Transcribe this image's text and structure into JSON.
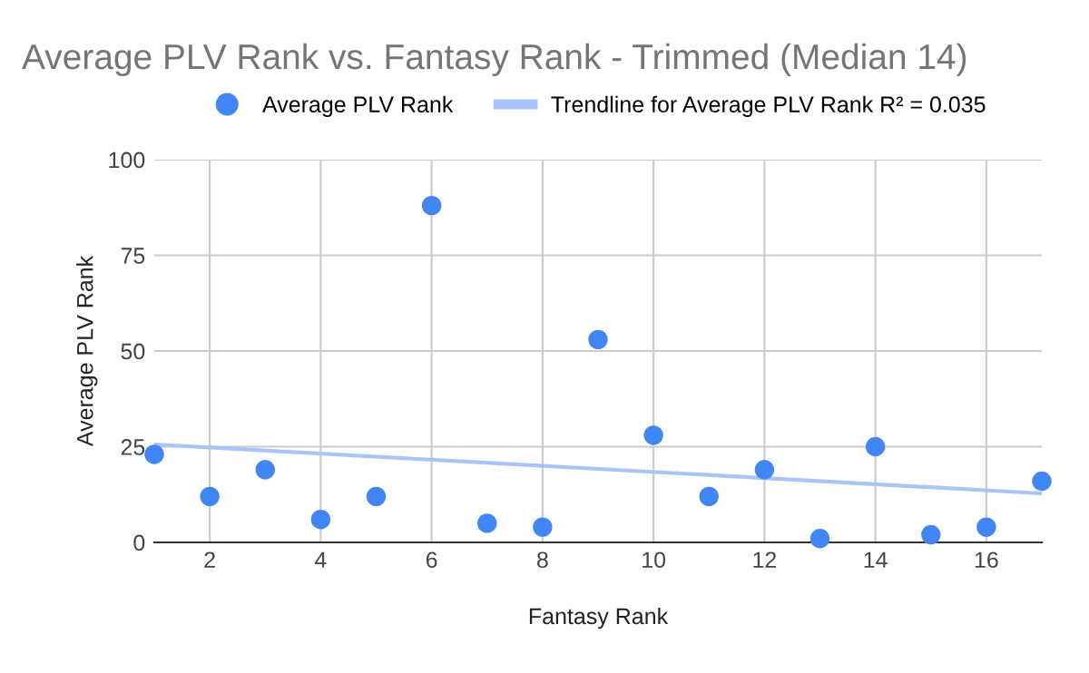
{
  "chart_data": {
    "type": "scatter",
    "title": "Average PLV Rank vs. Fantasy Rank - Trimmed (Median 14)",
    "xlabel": "Fantasy Rank",
    "ylabel": "Average PLV Rank",
    "x": [
      1,
      2,
      3,
      4,
      5,
      6,
      7,
      8,
      9,
      10,
      11,
      12,
      13,
      14,
      15,
      16,
      17
    ],
    "series": [
      {
        "name": "Average PLV Rank",
        "color": "#4285f4",
        "marker": "circle",
        "values": [
          23,
          12,
          19,
          6,
          12,
          88,
          5,
          4,
          53,
          28,
          12,
          19,
          1,
          25,
          2,
          4,
          16
        ]
      },
      {
        "name": "Trendline for Average PLV Rank R² = 0.035",
        "type": "line",
        "color": "#a9c4f8",
        "marker": "none",
        "x": [
          1,
          17
        ],
        "values": [
          25.6,
          12.8
        ]
      }
    ],
    "xlim": [
      1,
      17
    ],
    "xticks": [
      2,
      4,
      6,
      8,
      10,
      12,
      14,
      16
    ],
    "ylim": [
      0,
      100
    ],
    "yticks": [
      0,
      25,
      50,
      75,
      100
    ],
    "grid": true,
    "legend": "top"
  }
}
